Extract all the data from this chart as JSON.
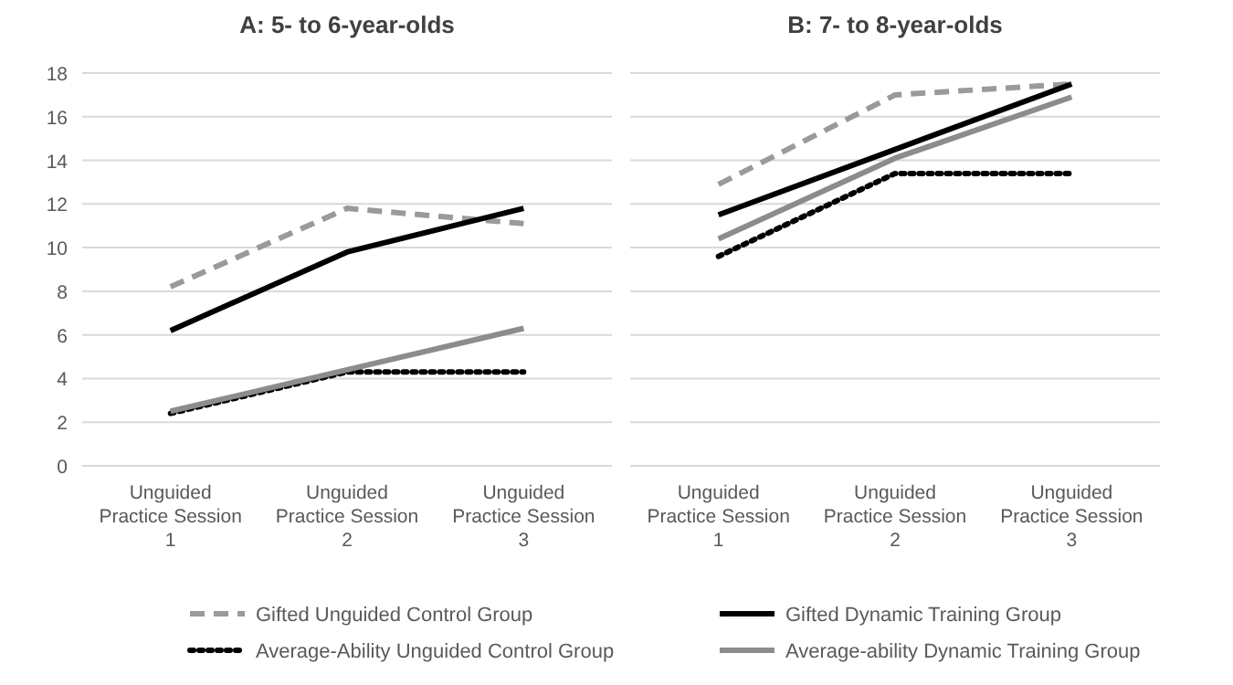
{
  "chart_data": [
    {
      "type": "line",
      "title": "A: 5- to 6-year-olds",
      "categories": [
        "Unguided Practice Session 1",
        "Unguided Practice Session 2",
        "Unguided Practice Session 3"
      ],
      "ylim": [
        0,
        18
      ],
      "yticks": [
        0,
        2,
        4,
        6,
        8,
        10,
        12,
        14,
        16,
        18
      ],
      "grid": "y",
      "legend": "bottom",
      "marker": "none",
      "series": [
        {
          "name": "Gifted Unguided Control Group",
          "color": "#9a9a9a",
          "line_style": "dashed",
          "values": [
            8.2,
            11.8,
            11.1
          ]
        },
        {
          "name": "Gifted Dynamic Training Group",
          "color": "#000000",
          "line_style": "solid",
          "values": [
            6.2,
            9.8,
            11.8
          ]
        },
        {
          "name": "Average-Ability Unguided Control Group",
          "color": "#000000",
          "line_style": "dotted",
          "values": [
            2.4,
            4.3,
            4.3
          ]
        },
        {
          "name": "Average-ability Dynamic Training Group",
          "color": "#8c8c8c",
          "line_style": "solid",
          "values": [
            2.5,
            4.4,
            6.3
          ]
        }
      ]
    },
    {
      "type": "line",
      "title": "B: 7- to 8-year-olds",
      "categories": [
        "Unguided Practice Session 1",
        "Unguided Practice Session 2",
        "Unguided Practice Session 3"
      ],
      "ylim": [
        0,
        18
      ],
      "yticks": [
        0,
        2,
        4,
        6,
        8,
        10,
        12,
        14,
        16,
        18
      ],
      "grid": "y",
      "tick_labels": "x",
      "marker": "none",
      "series": [
        {
          "color": "#9a9a9a",
          "line_style": "dashed",
          "values": [
            12.9,
            17.0,
            17.5
          ]
        },
        {
          "color": "#000000",
          "line_style": "solid",
          "values": [
            11.5,
            14.5,
            17.5
          ]
        },
        {
          "color": "#000000",
          "line_style": "dotted",
          "values": [
            9.6,
            13.4,
            13.4
          ]
        },
        {
          "color": "#8c8c8c",
          "line_style": "solid",
          "values": [
            10.4,
            14.1,
            16.9
          ]
        }
      ]
    }
  ]
}
